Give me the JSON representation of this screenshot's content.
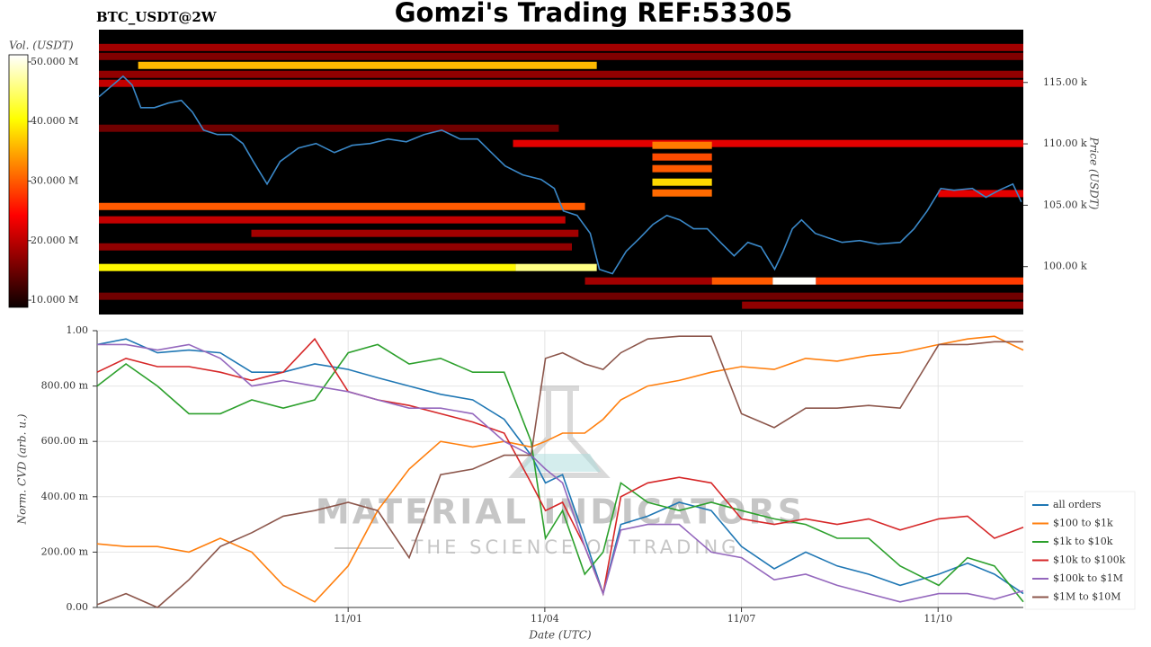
{
  "title": "Gomzi's Trading REF:53305",
  "watermark": {
    "title": "MATERIAL INDICATORS",
    "subtitle": "THE SCIENCE OF TRADING"
  },
  "chart_data": [
    {
      "type": "heatmap",
      "title": "BTC_USDT@2W",
      "ylabel": "Price (USDT)",
      "xlim": [
        -3.83,
        10.3
      ],
      "ylim": [
        96100,
        119300
      ],
      "yticks": [
        {
          "value": 100000,
          "label": "100.00 k"
        },
        {
          "value": 105000,
          "label": "105.00 k"
        },
        {
          "value": 110000,
          "label": "110.00 k"
        },
        {
          "value": 115000,
          "label": "115.00 k"
        }
      ],
      "colorbar": {
        "label": "Vol. (USDT)",
        "lim": [
          8800000,
          51200000
        ],
        "ticks": [
          {
            "value": 10000000,
            "label": "10.000 M"
          },
          {
            "value": 20000000,
            "label": "20.000 M"
          },
          {
            "value": 30000000,
            "label": "30.000 M"
          },
          {
            "value": 40000000,
            "label": "40.000 M"
          },
          {
            "value": 50000000,
            "label": "50.000 M"
          }
        ]
      },
      "bands": [
        {
          "x": [
            -3.83,
            10.3
          ],
          "y": 117850,
          "value": 18000000
        },
        {
          "x": [
            -3.83,
            10.3
          ],
          "y": 117120,
          "value": 16000000
        },
        {
          "x": [
            -3.23,
            3.78
          ],
          "y": 116390,
          "value": 36000000
        },
        {
          "x": [
            -3.83,
            10.3
          ],
          "y": 115660,
          "value": 17000000
        },
        {
          "x": [
            -3.83,
            10.3
          ],
          "y": 114930,
          "value": 20000000
        },
        {
          "x": [
            -3.83,
            3.2
          ],
          "y": 111270,
          "value": 15000000
        },
        {
          "x": [
            2.5,
            10.3
          ],
          "y": 110030,
          "value": 22000000
        },
        {
          "x": [
            4.63,
            5.54
          ],
          "y": 109880,
          "value": 32000000
        },
        {
          "x": [
            4.63,
            5.54
          ],
          "y": 108930,
          "value": 29000000
        },
        {
          "x": [
            4.63,
            5.54
          ],
          "y": 107980,
          "value": 30000000
        },
        {
          "x": [
            4.63,
            5.54
          ],
          "y": 106880,
          "value": 38000000
        },
        {
          "x": [
            4.63,
            5.54
          ],
          "y": 106000,
          "value": 31000000
        },
        {
          "x": [
            9.0,
            10.3
          ],
          "y": 105950,
          "value": 22000000
        },
        {
          "x": [
            -3.83,
            3.6
          ],
          "y": 104900,
          "value": 30000000
        },
        {
          "x": [
            -3.83,
            3.3
          ],
          "y": 103810,
          "value": 20000000
        },
        {
          "x": [
            -1.5,
            3.5
          ],
          "y": 102710,
          "value": 18000000
        },
        {
          "x": [
            -3.83,
            3.4
          ],
          "y": 101610,
          "value": 17000000
        },
        {
          "x": [
            -3.83,
            2.54
          ],
          "y": 99930,
          "value": 40000000
        },
        {
          "x": [
            2.54,
            3.78
          ],
          "y": 99930,
          "value": 46000000
        },
        {
          "x": [
            3.6,
            5.54
          ],
          "y": 98830,
          "value": 18000000
        },
        {
          "x": [
            5.54,
            6.47
          ],
          "y": 98830,
          "value": 30000000
        },
        {
          "x": [
            6.47,
            7.13
          ],
          "y": 98830,
          "value": 51000000
        },
        {
          "x": [
            7.13,
            10.3
          ],
          "y": 98830,
          "value": 28000000
        },
        {
          "x": [
            -3.83,
            10.3
          ],
          "y": 97590,
          "value": 15000000
        },
        {
          "x": [
            6.0,
            10.3
          ],
          "y": 96860,
          "value": 17000000
        }
      ],
      "color": "#3a88c8",
      "x": [
        -3.83,
        -3.67,
        -3.46,
        -3.32,
        -3.19,
        -2.98,
        -2.77,
        -2.57,
        -2.4,
        -2.23,
        -2.02,
        -1.81,
        -1.63,
        -1.47,
        -1.26,
        -1.06,
        -0.78,
        -0.51,
        -0.23,
        0.04,
        0.32,
        0.59,
        0.87,
        1.14,
        1.41,
        1.69,
        1.96,
        2.17,
        2.38,
        2.65,
        2.93,
        3.13,
        3.27,
        3.48,
        3.68,
        3.82,
        4.02,
        4.23,
        4.44,
        4.64,
        4.85,
        5.05,
        5.26,
        5.47,
        5.67,
        5.88,
        6.09,
        6.29,
        6.5,
        6.63,
        6.77,
        6.91,
        7.12,
        7.32,
        7.53,
        7.8,
        8.08,
        8.42,
        8.63,
        8.83,
        9.04,
        9.24,
        9.52,
        9.73,
        9.93,
        10.14,
        10.27
      ],
      "values": [
        113830,
        114560,
        115510,
        114780,
        112950,
        112950,
        113320,
        113540,
        112590,
        111120,
        110760,
        110760,
        110030,
        108560,
        106730,
        108560,
        109660,
        110030,
        109290,
        109880,
        110030,
        110390,
        110170,
        110760,
        111120,
        110390,
        110390,
        109290,
        108200,
        107470,
        107100,
        106370,
        104540,
        104170,
        102710,
        99780,
        99420,
        101250,
        102340,
        103440,
        104170,
        103810,
        103080,
        103080,
        101980,
        100880,
        101980,
        101610,
        99780,
        101250,
        103080,
        103810,
        102710,
        102340,
        101980,
        102120,
        101830,
        101980,
        103080,
        104540,
        106370,
        106220,
        106370,
        105640,
        106220,
        106730,
        105270
      ]
    },
    {
      "type": "line",
      "xlabel": "Date (UTC)",
      "ylabel": "Norm. CVD (arb. u.)",
      "xlim": [
        -3.83,
        10.3
      ],
      "xticks": [
        {
          "value": 0,
          "label": "11/01"
        },
        {
          "value": 3,
          "label": "11/04"
        },
        {
          "value": 6,
          "label": "11/07"
        },
        {
          "value": 9,
          "label": "11/10"
        }
      ],
      "ylim": [
        0,
        1
      ],
      "yticks": [
        {
          "value": 0,
          "label": "0.00"
        },
        {
          "value": 0.2,
          "label": "200.00 m"
        },
        {
          "value": 0.4,
          "label": "400.00 m"
        },
        {
          "value": 0.6,
          "label": "600.00 m"
        },
        {
          "value": 0.8,
          "label": "800.00 m"
        },
        {
          "value": 1,
          "label": "1.00"
        }
      ],
      "grid": true,
      "legend": "lower right",
      "x": [
        -3.83,
        -3.39,
        -2.91,
        -2.43,
        -1.95,
        -1.47,
        -0.99,
        -0.51,
        0,
        0.45,
        0.93,
        1.41,
        1.9,
        2.38,
        2.79,
        3.01,
        3.27,
        3.61,
        3.89,
        4.16,
        4.57,
        5.05,
        5.54,
        6.0,
        6.5,
        6.98,
        7.46,
        7.94,
        8.42,
        9.01,
        9.45,
        9.86,
        10.3
      ],
      "series": [
        {
          "name": "all orders",
          "color": "#1f77b4",
          "values": [
            0.95,
            0.97,
            0.92,
            0.93,
            0.92,
            0.85,
            0.85,
            0.88,
            0.86,
            0.83,
            0.8,
            0.77,
            0.75,
            0.68,
            0.55,
            0.45,
            0.48,
            0.25,
            0.05,
            0.3,
            0.33,
            0.38,
            0.35,
            0.22,
            0.14,
            0.2,
            0.15,
            0.12,
            0.08,
            0.12,
            0.16,
            0.12,
            0.05
          ]
        },
        {
          "name": "$100 to $1k",
          "color": "#ff7f0e",
          "values": [
            0.23,
            0.22,
            0.22,
            0.2,
            0.25,
            0.2,
            0.08,
            0.02,
            0.15,
            0.35,
            0.5,
            0.6,
            0.58,
            0.6,
            0.58,
            0.6,
            0.63,
            0.63,
            0.68,
            0.75,
            0.8,
            0.82,
            0.85,
            0.87,
            0.86,
            0.9,
            0.89,
            0.91,
            0.92,
            0.95,
            0.97,
            0.98,
            0.93
          ]
        },
        {
          "name": "$1k to $10k",
          "color": "#2ca02c",
          "values": [
            0.8,
            0.88,
            0.8,
            0.7,
            0.7,
            0.75,
            0.72,
            0.75,
            0.92,
            0.95,
            0.88,
            0.9,
            0.85,
            0.85,
            0.6,
            0.25,
            0.35,
            0.12,
            0.2,
            0.45,
            0.38,
            0.35,
            0.38,
            0.35,
            0.32,
            0.3,
            0.25,
            0.25,
            0.15,
            0.08,
            0.18,
            0.15,
            0.02
          ]
        },
        {
          "name": "$10k to $100k",
          "color": "#d62728",
          "values": [
            0.85,
            0.9,
            0.87,
            0.87,
            0.85,
            0.82,
            0.85,
            0.97,
            0.78,
            0.75,
            0.73,
            0.7,
            0.67,
            0.63,
            0.45,
            0.35,
            0.38,
            0.22,
            0.05,
            0.4,
            0.45,
            0.47,
            0.45,
            0.32,
            0.3,
            0.32,
            0.3,
            0.32,
            0.28,
            0.32,
            0.33,
            0.25,
            0.29
          ]
        },
        {
          "name": "$100k to $1M",
          "color": "#9467bd",
          "values": [
            0.95,
            0.95,
            0.93,
            0.95,
            0.9,
            0.8,
            0.82,
            0.8,
            0.78,
            0.75,
            0.72,
            0.72,
            0.7,
            0.6,
            0.55,
            0.5,
            0.45,
            0.22,
            0.05,
            0.28,
            0.3,
            0.3,
            0.2,
            0.18,
            0.1,
            0.12,
            0.08,
            0.05,
            0.02,
            0.05,
            0.05,
            0.03,
            0.06
          ]
        },
        {
          "name": "$1M to $10M",
          "color": "#8c564b",
          "values": [
            0.01,
            0.05,
            0.0,
            0.1,
            0.22,
            0.27,
            0.33,
            0.35,
            0.38,
            0.35,
            0.18,
            0.48,
            0.5,
            0.55,
            0.55,
            0.9,
            0.92,
            0.88,
            0.86,
            0.92,
            0.97,
            0.98,
            0.98,
            0.7,
            0.65,
            0.72,
            0.72,
            0.73,
            0.72,
            0.95,
            0.95,
            0.96,
            0.96
          ]
        }
      ]
    }
  ]
}
